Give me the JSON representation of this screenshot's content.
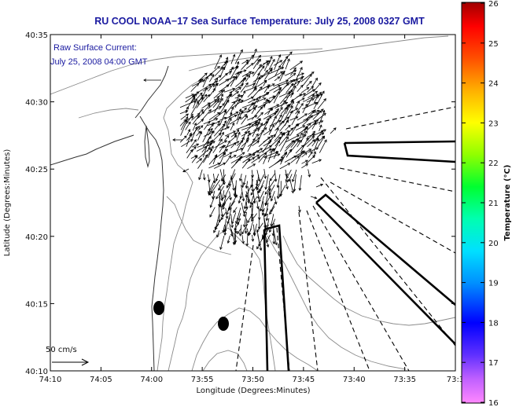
{
  "title": "RU COOL  NOAA−17  Sea Surface Temperature:  July 25, 2008 0327 GMT",
  "annotation": {
    "line1": "Raw Surface Current:",
    "line2": "July 25, 2008 04:00 GMT"
  },
  "axes": {
    "xlabel": "Longitude (Degrees:Minutes)",
    "ylabel": "Latitude (Degrees:Minutes)",
    "x_ticks": [
      "74:10",
      "74:05",
      "74:00",
      "73:55",
      "73:50",
      "73:45",
      "73:40",
      "73:35",
      "73:3"
    ],
    "y_ticks": [
      "40:35",
      "40:30",
      "40:25",
      "40:20",
      "40:15",
      "40:10"
    ]
  },
  "colorbar": {
    "label": "Temperature (°C)",
    "ticks": [
      "26",
      "25",
      "24",
      "23",
      "22",
      "21",
      "20",
      "19",
      "18",
      "17",
      "16"
    ],
    "min": 16,
    "max": 26
  },
  "scale_arrow": {
    "label": "50 cm/s"
  },
  "colors": {
    "title": "#1a1aa0",
    "contour": "#8a8a8a",
    "vectors": "#000000"
  }
}
